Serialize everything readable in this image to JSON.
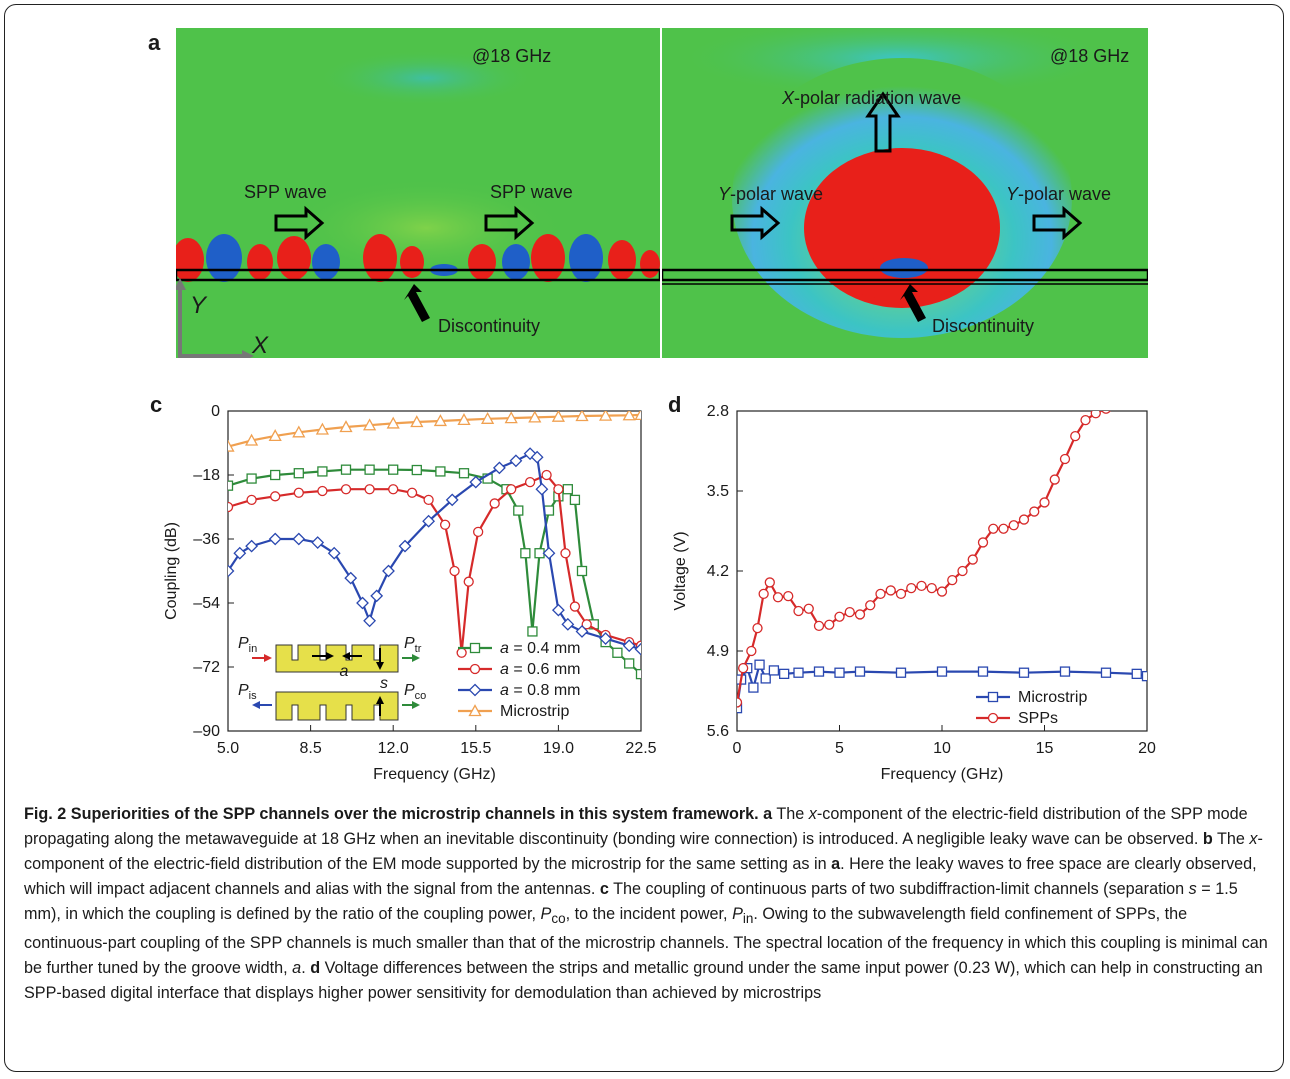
{
  "figure": {
    "panel_labels": [
      "a",
      "b",
      "c",
      "d"
    ],
    "panel_a": {
      "freq_label": "@18 GHz",
      "wave_label_1": "SPP wave",
      "wave_label_2": "SPP wave",
      "discontinuity_label": "Discontinuity",
      "axis_y": "Y",
      "axis_x": "X"
    },
    "panel_b": {
      "freq_label": "@18 GHz",
      "radiation_label_italic": "X",
      "radiation_label_rest": "-polar radiation wave",
      "wave_label_italic": "Y",
      "wave_label_rest": "-polar wave",
      "wave_label2_italic": "Y",
      "wave_label2_rest": "-polar wave",
      "discontinuity_label": "Discontinuity"
    },
    "colors": {
      "field_green": "#4fc24a",
      "field_red": "#e8201a",
      "field_blue": "#1f5fc8",
      "field_cyan": "#3bc7c0",
      "series_green": "#2e8b3a",
      "series_red": "#d62a2a",
      "series_blue": "#2a48b0",
      "series_orange": "#f0a050",
      "inset_yellow": "#e6e04a"
    }
  },
  "chart_data": [
    {
      "panel": "c",
      "type": "line",
      "xlabel": "Frequency (GHz)",
      "ylabel": "Coupling (dB)",
      "xlim": [
        5.0,
        22.5
      ],
      "ylim": [
        -90,
        0
      ],
      "xticks": [
        "5.0",
        "8.5",
        "12.0",
        "15.5",
        "19.0",
        "22.5"
      ],
      "yticks": [
        "0",
        "–18",
        "–36",
        "–54",
        "–72",
        "–90"
      ],
      "legend_position": "lower-right",
      "inset_labels": {
        "pin": "P",
        "pin_sub": "in",
        "ptr": "P",
        "ptr_sub": "tr",
        "pis": "P",
        "pis_sub": "is",
        "pco": "P",
        "pco_sub": "co",
        "a": "a",
        "s": "s"
      },
      "series": [
        {
          "name_italic": "a",
          "name_rest": " = 0.4 mm",
          "color": "#2e8b3a",
          "marker": "square",
          "x": [
            5.0,
            6.0,
            7.0,
            8.0,
            9.0,
            10.0,
            11.0,
            12.0,
            13.0,
            14.0,
            15.0,
            16.0,
            16.8,
            17.3,
            17.6,
            17.9,
            18.2,
            18.6,
            19.0,
            19.4,
            19.7,
            20.0,
            20.5,
            21.0,
            21.5,
            22.0,
            22.5
          ],
          "y": [
            -21,
            -19,
            -18,
            -17.5,
            -17,
            -16.5,
            -16.5,
            -16.5,
            -16.6,
            -17,
            -17.5,
            -19,
            -22,
            -28,
            -40,
            -62,
            -40,
            -28,
            -24,
            -22,
            -25,
            -45,
            -60,
            -65,
            -68,
            -71,
            -74
          ]
        },
        {
          "name_italic": "a",
          "name_rest": " = 0.6 mm",
          "color": "#d62a2a",
          "marker": "circle",
          "x": [
            5.0,
            6.0,
            7.0,
            8.0,
            9.0,
            10.0,
            11.0,
            12.0,
            12.8,
            13.5,
            14.2,
            14.6,
            14.9,
            15.2,
            15.6,
            16.3,
            17.0,
            17.8,
            18.5,
            19.0,
            19.3,
            19.7,
            20.2,
            21.0,
            22.0,
            22.5
          ],
          "y": [
            -27,
            -25,
            -24,
            -23,
            -22.5,
            -22,
            -22,
            -22,
            -23,
            -25,
            -32,
            -45,
            -68,
            -48,
            -34,
            -26,
            -22,
            -20,
            -18,
            -22,
            -40,
            -55,
            -60,
            -63,
            -65,
            -66
          ]
        },
        {
          "name_italic": "a",
          "name_rest": " = 0.8 mm",
          "color": "#2a48b0",
          "marker": "diamond",
          "x": [
            5.0,
            5.5,
            6.0,
            7.0,
            8.0,
            8.8,
            9.5,
            10.2,
            10.7,
            11.0,
            11.3,
            11.8,
            12.5,
            13.5,
            14.5,
            15.5,
            16.5,
            17.2,
            17.8,
            18.1,
            18.3,
            18.6,
            19.0,
            19.4,
            20.0,
            21.0,
            22.0,
            22.5
          ],
          "y": [
            -45,
            -40,
            -38,
            -36,
            -36,
            -37,
            -40,
            -47,
            -54,
            -59,
            -52,
            -45,
            -38,
            -31,
            -25,
            -20,
            -16,
            -14,
            -12,
            -13,
            -22,
            -40,
            -56,
            -60,
            -62,
            -64,
            -66,
            -67
          ]
        },
        {
          "name": "Microstrip",
          "color": "#f0a050",
          "marker": "triangle",
          "x": [
            5.0,
            6.0,
            7.0,
            8.0,
            9.0,
            10.0,
            11.0,
            12.0,
            13.0,
            14.0,
            15.0,
            16.0,
            17.0,
            18.0,
            19.0,
            20.0,
            21.0,
            22.0,
            22.5
          ],
          "y": [
            -10,
            -8.3,
            -7,
            -6,
            -5.2,
            -4.5,
            -4,
            -3.5,
            -3.1,
            -2.8,
            -2.5,
            -2.2,
            -2.0,
            -1.8,
            -1.6,
            -1.4,
            -1.3,
            -1.2,
            -1.1
          ]
        }
      ]
    },
    {
      "panel": "d",
      "type": "line",
      "xlabel": "Frequency (GHz)",
      "ylabel": "Voltage (V)",
      "xlim": [
        0,
        20
      ],
      "ylim": [
        2.8,
        5.6
      ],
      "xticks": [
        "0",
        "5",
        "10",
        "15",
        "20"
      ],
      "yticks": [
        "2.8",
        "3.5",
        "4.2",
        "4.9",
        "5.6"
      ],
      "legend_position": "lower-right",
      "series": [
        {
          "name": "Microstrip",
          "color": "#2a48b0",
          "marker": "square",
          "x": [
            0,
            0.2,
            0.5,
            0.8,
            1.1,
            1.4,
            1.8,
            2.3,
            3,
            4,
            5,
            6,
            8,
            10,
            12,
            14,
            16,
            18,
            19.5,
            20
          ],
          "y": [
            3.0,
            3.25,
            3.35,
            3.18,
            3.38,
            3.26,
            3.33,
            3.3,
            3.31,
            3.32,
            3.31,
            3.32,
            3.31,
            3.32,
            3.32,
            3.31,
            3.32,
            3.31,
            3.3,
            3.28
          ]
        },
        {
          "name": "SPPs",
          "color": "#d62a2a",
          "marker": "circle",
          "x": [
            0,
            0.3,
            0.7,
            1.0,
            1.3,
            1.6,
            2.0,
            2.5,
            3.0,
            3.5,
            4.0,
            4.5,
            5.0,
            5.5,
            6.0,
            6.5,
            7.0,
            7.5,
            8.0,
            8.5,
            9.0,
            9.5,
            10.0,
            10.5,
            11.0,
            11.5,
            12.0,
            12.5,
            13.0,
            13.5,
            14.0,
            14.5,
            15.0,
            15.5,
            16.0,
            16.5,
            17.0,
            17.5,
            18.0
          ],
          "y": [
            3.05,
            3.35,
            3.5,
            3.7,
            4.0,
            4.1,
            3.97,
            3.98,
            3.85,
            3.87,
            3.72,
            3.73,
            3.8,
            3.84,
            3.82,
            3.9,
            4.0,
            4.03,
            4.0,
            4.05,
            4.07,
            4.05,
            4.02,
            4.12,
            4.2,
            4.3,
            4.45,
            4.57,
            4.57,
            4.6,
            4.65,
            4.72,
            4.8,
            5.0,
            5.18,
            5.38,
            5.52,
            5.58,
            5.62
          ]
        }
      ]
    }
  ],
  "caption": {
    "fig_label": "Fig. 2",
    "fig_title": " Superiorities of the SPP channels over the microstrip channels in this system framework.",
    "pa": "a",
    "ta1": " The ",
    "ta_x": "x",
    "ta2": "-component of the electric-field distribution of the SPP mode propagating along the metawaveguide at 18 GHz when an inevitable discontinuity (bonding wire connection) is introduced. A negligible leaky wave can be observed. ",
    "pb": "b",
    "tb1": " The ",
    "tb_x": "x",
    "tb2": "-component of the electric-field distribution of the EM mode supported by the microstrip for the same setting as in ",
    "tb_a": "a",
    "tb3": ". Here the leaky waves to free space are clearly observed, which will impact adjacent channels and alias with the signal from the antennas. ",
    "pc": "c",
    "tc1": " The coupling of continuous parts of two subdiffraction-limit channels (separation ",
    "tc_s": "s",
    "tc2": " = 1.5 mm), in which the coupling is defined by the ratio of the coupling power, ",
    "tc_pco": "P",
    "tc_pco_sub": "co",
    "tc3": ", to the incident power, ",
    "tc_pin": "P",
    "tc_pin_sub": "in",
    "tc4": ". Owing to the subwavelength field confinement of SPPs, the continuous-part coupling of the SPP channels is much smaller than that of the microstrip channels. The spectral location of the frequency in which this coupling is minimal can be further tuned by the groove width, ",
    "tc_a": "a",
    "tc5": ". ",
    "pd": "d",
    "td1": " Voltage differences between the strips and metallic ground under the same input power (0.23 W), which can help in constructing an SPP-based digital interface that displays higher power sensitivity for demodulation than achieved by microstrips"
  }
}
